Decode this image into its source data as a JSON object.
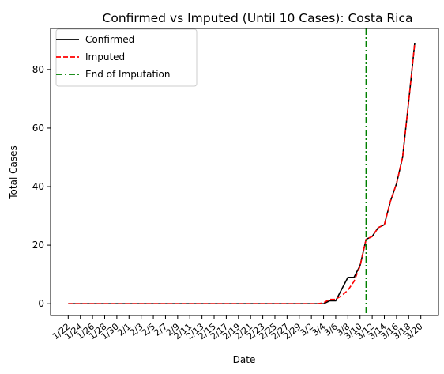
{
  "chart_data": {
    "type": "line",
    "title": "Confirmed vs Imputed (Until 10 Cases): Costa Rica",
    "xlabel": "Date",
    "ylabel": "Total Cases",
    "ylim": [
      -4,
      94
    ],
    "yticks": [
      0,
      20,
      40,
      60,
      80
    ],
    "xlim": [
      -2.9,
      60.9
    ],
    "xtick_labels": [
      "1/22",
      "1/24",
      "1/26",
      "1/28",
      "1/30",
      "2/1",
      "2/3",
      "2/5",
      "2/7",
      "2/9",
      "2/11",
      "2/13",
      "2/15",
      "2/17",
      "2/19",
      "2/21",
      "2/23",
      "2/25",
      "2/27",
      "2/29",
      "3/2",
      "3/4",
      "3/6",
      "3/8",
      "3/10",
      "3/12",
      "3/14",
      "3/16",
      "3/18",
      "3/20"
    ],
    "vline_x": 49,
    "legend_position": "top-left",
    "series": [
      {
        "name": "Confirmed",
        "color": "#000000",
        "style": "solid",
        "values": [
          0,
          0,
          0,
          0,
          0,
          0,
          0,
          0,
          0,
          0,
          0,
          0,
          0,
          0,
          0,
          0,
          0,
          0,
          0,
          0,
          0,
          0,
          0,
          0,
          0,
          0,
          0,
          0,
          0,
          0,
          0,
          0,
          0,
          0,
          0,
          0,
          0,
          0,
          0,
          0,
          0,
          0,
          0,
          1,
          1,
          5,
          9,
          9,
          13,
          22,
          23,
          26,
          27,
          35,
          41,
          50,
          69,
          89
        ]
      },
      {
        "name": "Imputed",
        "color": "#ff0000",
        "style": "dashed",
        "values": [
          0,
          0,
          0,
          0,
          0,
          0,
          0,
          0,
          0,
          0,
          0,
          0,
          0,
          0,
          0,
          0,
          0,
          0,
          0,
          0,
          0,
          0,
          0,
          0,
          0,
          0,
          0,
          0,
          0,
          0,
          0,
          0,
          0,
          0,
          0,
          0,
          0,
          0,
          0,
          0,
          0,
          0,
          0.3,
          1.5,
          1.5,
          2.8,
          4.6,
          7.6,
          12.8,
          22,
          23,
          26,
          27,
          35,
          41,
          50,
          69,
          89
        ]
      },
      {
        "name": "End of Imputation",
        "color": "#008000",
        "style": "dashdot"
      }
    ]
  }
}
